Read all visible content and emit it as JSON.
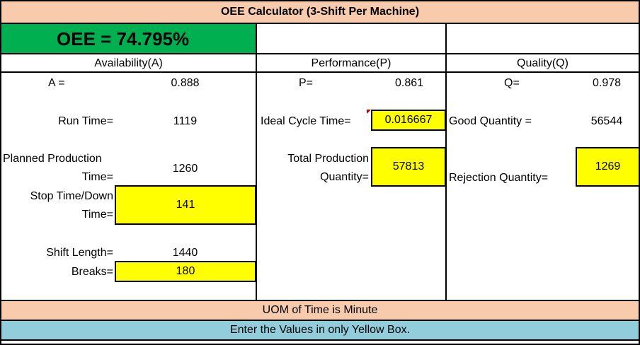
{
  "title": "OEE Calculator (3-Shift Per Machine)",
  "oee": "OEE = 74.795%",
  "headers": {
    "availability": "Availability(A)",
    "performance": "Performance(P)",
    "quality": "Quality(Q)"
  },
  "availability": {
    "a_label": "A =",
    "a_value": "0.888",
    "run_time_label": "Run Time=",
    "run_time_value": "1119",
    "planned_label_1": "Planned Production",
    "planned_label_2": "Time=",
    "planned_value": "1260",
    "stop_label_1": "Stop Time/Down",
    "stop_label_2": "Time=",
    "stop_value": "141",
    "shift_label": "Shift Length=",
    "shift_value": "1440",
    "breaks_label": "Breaks=",
    "breaks_value": "180"
  },
  "performance": {
    "p_label": "P=",
    "p_value": "0.861",
    "ideal_label": "Ideal Cycle Time=",
    "ideal_value": "0.016667",
    "total_label_1": "Total Production",
    "total_label_2": "Quantity=",
    "total_value": "57813"
  },
  "quality": {
    "q_label": "Q=",
    "q_value": "0.978",
    "good_label": "Good Quantity =",
    "good_value": "56544",
    "reject_label": "Rejection Quantity=",
    "reject_value": "1269"
  },
  "footer": {
    "uom": "UOM of Time is Minute",
    "note": "Enter the Values in only Yellow Box."
  },
  "colors": {
    "title_bg": "#f8cbad",
    "oee_bg": "#00b050",
    "input_bg": "#ffff00",
    "note_bg": "#92cddc"
  }
}
